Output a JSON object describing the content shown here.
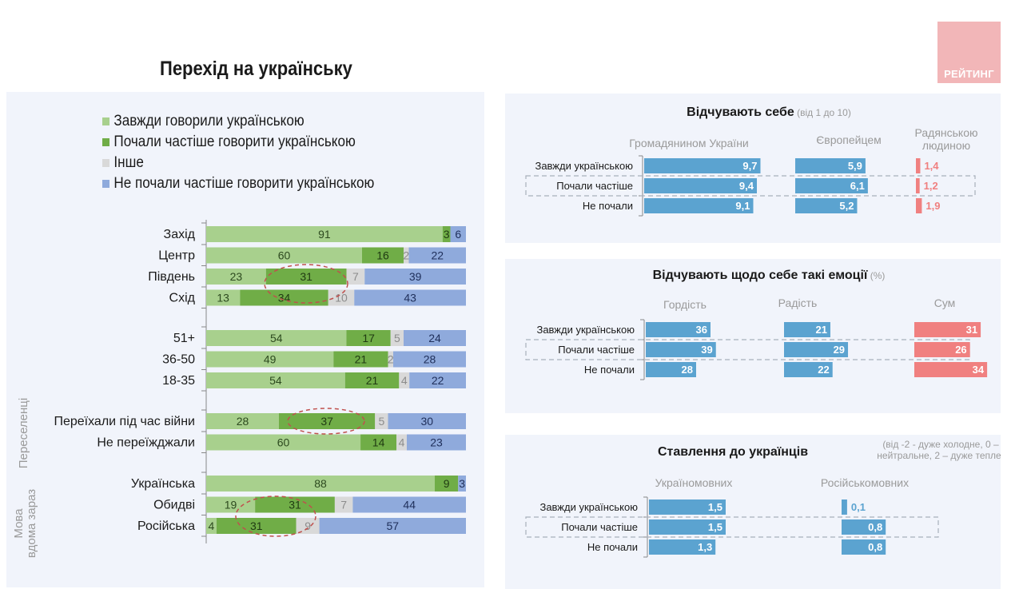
{
  "logo": {
    "text": "РЕЙТИНГ",
    "color": "#f2b6b8"
  },
  "main_title": "Перехід на українську",
  "colors": {
    "always": "#a8d08d",
    "started": "#70ad47",
    "other": "#d9d9d9",
    "not_started": "#8faadc",
    "blue_bar": "#5ba3d0",
    "red_bar": "#f08080",
    "highlight_ellipse": "#c0504d",
    "panel_bg": "#f1f4fb"
  },
  "chart_data": [
    {
      "type": "bar",
      "orientation": "horizontal-stacked-100",
      "title": "Перехід на українську",
      "legend": [
        {
          "key": "always",
          "label": "Завжди говорили українською"
        },
        {
          "key": "started",
          "label": "Почали частіше говорити українською"
        },
        {
          "key": "other",
          "label": "Інше"
        },
        {
          "key": "not_started",
          "label": "Не почали частіше говорити українською"
        }
      ],
      "legend_position": "top",
      "groups": [
        {
          "group_label": "",
          "rows": [
            {
              "label": "Захід",
              "values": [
                91,
                3,
                0,
                6
              ],
              "labels": [
                "91",
                "3",
                "",
                "6"
              ],
              "highlight": false
            },
            {
              "label": "Центр",
              "values": [
                60,
                16,
                2,
                22
              ],
              "labels": [
                "60",
                "16",
                "2",
                "22"
              ],
              "highlight": false
            },
            {
              "label": "Південь",
              "values": [
                23,
                31,
                7,
                39
              ],
              "labels": [
                "23",
                "31",
                "7",
                "39"
              ],
              "highlight": true
            },
            {
              "label": "Схід",
              "values": [
                13,
                34,
                10,
                43
              ],
              "labels": [
                "13",
                "34",
                "10",
                "43"
              ],
              "highlight": true
            }
          ]
        },
        {
          "group_label": "",
          "rows": [
            {
              "label": "51+",
              "values": [
                54,
                17,
                5,
                24
              ],
              "labels": [
                "54",
                "17",
                "5",
                "24"
              ],
              "highlight": false
            },
            {
              "label": "36-50",
              "values": [
                49,
                21,
                2,
                28
              ],
              "labels": [
                "49",
                "21",
                "2",
                "28"
              ],
              "highlight": false
            },
            {
              "label": "18-35",
              "values": [
                54,
                21,
                4,
                22
              ],
              "labels": [
                "54",
                "21",
                "4",
                "22"
              ],
              "highlight": false
            }
          ]
        },
        {
          "group_label": "Переселенці",
          "rows": [
            {
              "label": "Переїхали під час війни",
              "values": [
                28,
                37,
                5,
                30
              ],
              "labels": [
                "28",
                "37",
                "5",
                "30"
              ],
              "highlight": true
            },
            {
              "label": "Не переїжджали",
              "values": [
                60,
                14,
                4,
                23
              ],
              "labels": [
                "60",
                "14",
                "4",
                "23"
              ],
              "highlight": false
            }
          ]
        },
        {
          "group_label": "Мова вдома зараз",
          "group_label_lines": [
            "Мова",
            "вдома зараз"
          ],
          "rows": [
            {
              "label": "Українська",
              "values": [
                88,
                9,
                0,
                3
              ],
              "labels": [
                "88",
                "9",
                "",
                "3"
              ],
              "highlight": false
            },
            {
              "label": "Обидві",
              "values": [
                19,
                31,
                7,
                44
              ],
              "labels": [
                "19",
                "31",
                "7",
                "44"
              ],
              "highlight": true
            },
            {
              "label": "Російська",
              "values": [
                4,
                31,
                9,
                57
              ],
              "labels": [
                "4",
                "31",
                "9",
                "57"
              ],
              "highlight": true
            }
          ]
        }
      ]
    },
    {
      "type": "bar",
      "orientation": "horizontal-small-multiples",
      "title": "Відчувають себе",
      "subtitle": "(від 1 до 10)",
      "categories": [
        "Завжди українською",
        "Почали частіше",
        "Не почали"
      ],
      "highlighted_category": "Почали частіше",
      "xlim": [
        0,
        10
      ],
      "series": [
        {
          "name": "Громадянином України",
          "values": [
            9.7,
            9.4,
            9.1
          ],
          "labels": [
            "9,7",
            "9,4",
            "9,1"
          ],
          "color": "blue"
        },
        {
          "name": "Європейцем",
          "values": [
            5.9,
            6.1,
            5.2
          ],
          "labels": [
            "5,9",
            "6,1",
            "5,2"
          ],
          "color": "blue"
        },
        {
          "name": "Радянською людиною",
          "name_lines": [
            "Радянською",
            "людиною"
          ],
          "values": [
            1.4,
            1.2,
            1.9
          ],
          "labels": [
            "1,4",
            "1,2",
            "1,9"
          ],
          "color": "red"
        }
      ]
    },
    {
      "type": "bar",
      "orientation": "horizontal-small-multiples",
      "title": "Відчувають щодо себе такі емоції",
      "subtitle": "(%)",
      "categories": [
        "Завжди українською",
        "Почали частіше",
        "Не почали"
      ],
      "highlighted_category": "Почали частіше",
      "xlim": [
        0,
        100
      ],
      "series": [
        {
          "name": "Гордість",
          "values": [
            36,
            39,
            28
          ],
          "labels": [
            "36",
            "39",
            "28"
          ],
          "color": "blue"
        },
        {
          "name": "Радість",
          "values": [
            21,
            29,
            22
          ],
          "labels": [
            "21",
            "29",
            "22"
          ],
          "color": "blue"
        },
        {
          "name": "Сум",
          "values": [
            31,
            26,
            34
          ],
          "labels": [
            "31",
            "26",
            "34"
          ],
          "color": "red"
        }
      ]
    },
    {
      "type": "bar",
      "orientation": "horizontal-small-multiples",
      "title": "Ставлення до українців",
      "subtitle_lines": [
        "(від -2 - дуже холодне, 0 –",
        "нейтральне, 2 – дуже тепле)"
      ],
      "categories": [
        "Завжди українською",
        "Почали частіше",
        "Не почали"
      ],
      "highlighted_category": "Почали частіше",
      "xlim": [
        0,
        2
      ],
      "series": [
        {
          "name": "Україномовних",
          "values": [
            1.5,
            1.5,
            1.3
          ],
          "labels": [
            "1,5",
            "1,5",
            "1,3"
          ],
          "color": "blue"
        },
        {
          "name": "Російськомовних",
          "values": [
            0.1,
            0.8,
            0.8
          ],
          "labels": [
            "0,1",
            "0,8",
            "0,8"
          ],
          "color": "blue"
        }
      ]
    }
  ]
}
